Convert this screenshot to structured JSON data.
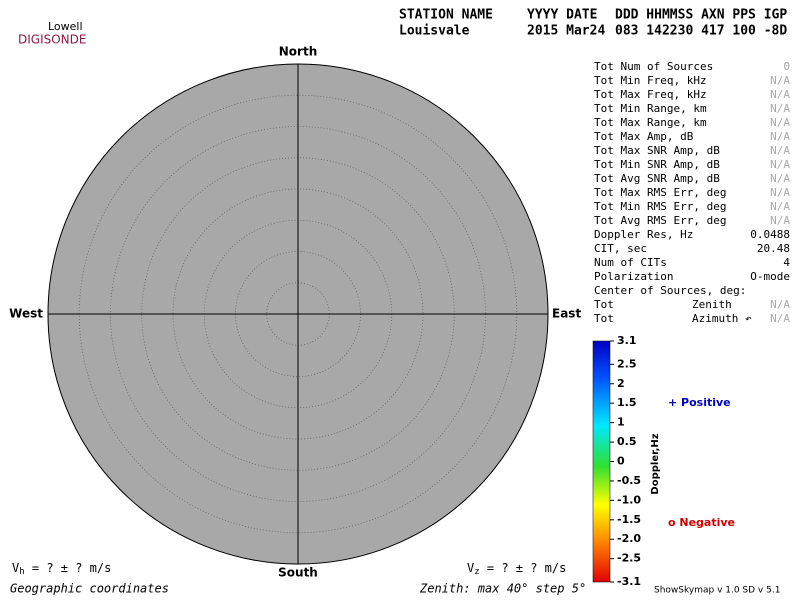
{
  "logo": {
    "top": "Lowell",
    "bottom": "DIGISONDE"
  },
  "header": {
    "row1": [
      "STATION NAME",
      "YYYY DATE",
      "DDD HHMMSS AXN PPS IGP"
    ],
    "row2": [
      "Louisvale",
      "2015 Mar24",
      "083 142230 417 100 -8D"
    ]
  },
  "skymap": {
    "north": "North",
    "south": "South",
    "east": "East",
    "west": "West"
  },
  "stats": [
    {
      "label": "Tot Num of Sources",
      "value": 0
    },
    {
      "label": "Tot Min Freq, kHz",
      "value": "N/A"
    },
    {
      "label": "Tot Max Freq, kHz",
      "value": "N/A"
    },
    {
      "label": "Tot Min Range, km",
      "value": "N/A"
    },
    {
      "label": "Tot Max Range, km",
      "value": "N/A"
    },
    {
      "label": "Tot Max Amp, dB",
      "value": "N/A"
    },
    {
      "label": "Tot Max SNR Amp, dB",
      "value": "N/A"
    },
    {
      "label": "Tot Min SNR Amp, dB",
      "value": "N/A"
    },
    {
      "label": "Tot Avg SNR Amp, dB",
      "value": "N/A"
    },
    {
      "label": "Tot Max RMS Err, deg",
      "value": "N/A"
    },
    {
      "label": "Tot Min RMS Err, deg",
      "value": "N/A"
    },
    {
      "label": "Tot Avg RMS Err, deg",
      "value": "N/A"
    },
    {
      "label": "Doppler Res, Hz",
      "value": 0.0488
    },
    {
      "label": "CIT, sec",
      "value": 20.48
    },
    {
      "label": "Num of CITs",
      "value": 4
    },
    {
      "label": "Polarization",
      "value": "O-mode"
    },
    {
      "label": "Center of Sources, deg:"
    },
    {
      "label": "Tot",
      "sub": "Zenith",
      "value": "N/A"
    },
    {
      "label": "Tot",
      "sub": "Azimuth ↶",
      "value": "N/A"
    }
  ],
  "colorbar": {
    "label": "Doppler,Hz",
    "lim": [
      -3.1,
      3.1
    ],
    "ticks": [
      3.1,
      2.5,
      2,
      1.5,
      1,
      0.5,
      0,
      -0.5,
      {
        "value": -1,
        "label": "-1.0"
      },
      -1.5,
      {
        "value": -2,
        "label": "-2.0"
      },
      -2.5,
      -3.1
    ]
  },
  "legend": {
    "positive": "+ Positive",
    "negative": "o Negative"
  },
  "footer": {
    "vh": {
      "v": "V",
      "sub": "h",
      "rest": " =  ? ±  ? m/s"
    },
    "vz": {
      "v": "V",
      "sub": "z",
      "rest": " =  ? ±  ? m/s"
    },
    "coords": "Geographic coordinates",
    "zenith": "Zenith: max 40°  step 5°",
    "version": "ShowSkymap v 1.0  SD v 5.1"
  }
}
